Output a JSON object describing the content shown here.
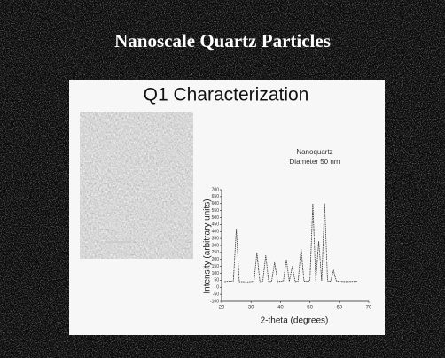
{
  "slide_title": "Nanoscale Quartz Particles",
  "panel_title": "Q1 Characterization",
  "chart_data": {
    "type": "line",
    "annotations": [
      "Nanoquartz",
      "Diameter 50 nm"
    ],
    "x_label": "2-theta (degrees)",
    "y_label": "Intensity (arbitrary units)",
    "x": [
      21,
      24,
      25,
      26,
      29,
      31,
      32,
      33,
      34,
      35,
      36,
      37,
      38,
      39,
      41,
      42,
      43,
      44,
      45,
      46,
      47,
      48,
      50,
      51,
      52,
      53,
      54,
      55,
      56,
      57,
      58,
      59,
      62,
      66
    ],
    "values": [
      40,
      45,
      420,
      40,
      38,
      42,
      250,
      40,
      44,
      230,
      40,
      42,
      180,
      40,
      45,
      200,
      42,
      150,
      40,
      44,
      280,
      42,
      45,
      600,
      44,
      330,
      46,
      600,
      45,
      42,
      120,
      44,
      40,
      42
    ],
    "color": "#333333",
    "xlim": [
      20,
      70
    ],
    "xticks": [
      20,
      30,
      40,
      50,
      60,
      70
    ],
    "ylim": [
      -100,
      700
    ],
    "yticks": [
      -100,
      -50,
      0,
      50,
      100,
      150,
      200,
      250,
      300,
      350,
      400,
      450,
      500,
      550,
      600,
      650,
      700
    ]
  }
}
